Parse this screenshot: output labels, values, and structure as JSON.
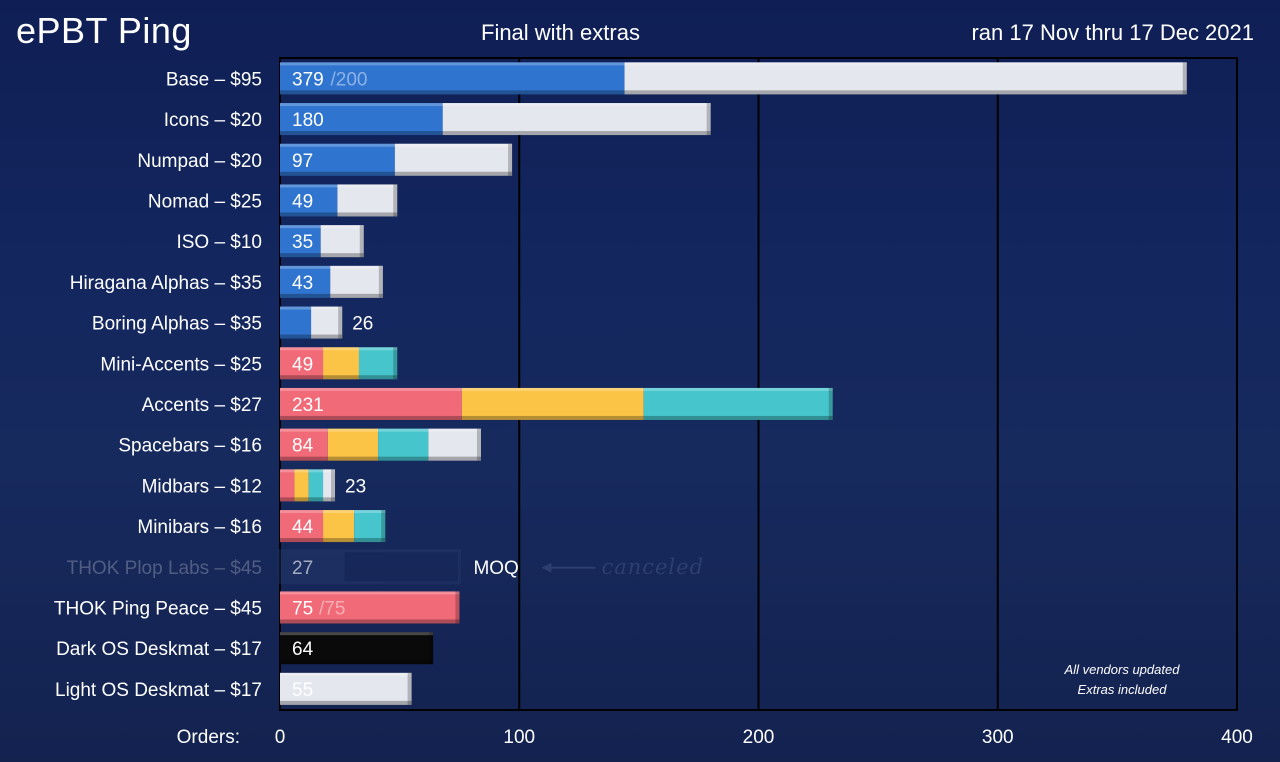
{
  "header": {
    "title": "ePBT Ping",
    "subtitle": "Final with extras",
    "date_range": "ran 17 Nov thru 17 Dec 2021"
  },
  "footer": {
    "axis_caption": "Orders:",
    "note_line1": "All vendors updated",
    "note_line2": "Extras included",
    "moq_label": "MOQ",
    "canceled_label": "canceled"
  },
  "colors": {
    "blue": "#2f74cf",
    "white": "#e4e7ee",
    "red": "#f06a78",
    "yellow": "#fbc446",
    "teal": "#46c6cc",
    "black": "#0a0a0a",
    "grid": "#000000",
    "faded": "#2c3f70"
  },
  "chart_data": {
    "type": "bar",
    "orientation": "horizontal",
    "stacked": true,
    "xlim": [
      0,
      400
    ],
    "xticks": [
      "0",
      "100",
      "200",
      "300",
      "400"
    ],
    "rows": [
      {
        "label": "Base – $95",
        "total": 379,
        "text": "379",
        "suffix": "/200",
        "text_pos": "inside",
        "segments": [
          {
            "color": "blue",
            "value": 144
          },
          {
            "color": "white",
            "value": 235
          }
        ]
      },
      {
        "label": "Icons – $20",
        "total": 180,
        "text": "180",
        "text_pos": "inside",
        "segments": [
          {
            "color": "blue",
            "value": 68
          },
          {
            "color": "white",
            "value": 112
          }
        ]
      },
      {
        "label": "Numpad – $20",
        "total": 97,
        "text": "97",
        "text_pos": "inside",
        "segments": [
          {
            "color": "blue",
            "value": 48
          },
          {
            "color": "white",
            "value": 49
          }
        ]
      },
      {
        "label": "Nomad – $25",
        "total": 49,
        "text": "49",
        "text_pos": "inside",
        "segments": [
          {
            "color": "blue",
            "value": 24
          },
          {
            "color": "white",
            "value": 25
          }
        ]
      },
      {
        "label": "ISO – $10",
        "total": 35,
        "text": "35",
        "text_pos": "inside",
        "segments": [
          {
            "color": "blue",
            "value": 17
          },
          {
            "color": "white",
            "value": 18
          }
        ]
      },
      {
        "label": "Hiragana Alphas – $35",
        "total": 43,
        "text": "43",
        "text_pos": "inside",
        "segments": [
          {
            "color": "blue",
            "value": 21
          },
          {
            "color": "white",
            "value": 22
          }
        ]
      },
      {
        "label": "Boring Alphas – $35",
        "total": 26,
        "text": "26",
        "text_pos": "outside",
        "segments": [
          {
            "color": "blue",
            "value": 13
          },
          {
            "color": "white",
            "value": 13
          }
        ]
      },
      {
        "label": "Mini-Accents – $25",
        "total": 49,
        "text": "49",
        "text_pos": "inside",
        "segments": [
          {
            "color": "red",
            "value": 18
          },
          {
            "color": "yellow",
            "value": 15
          },
          {
            "color": "teal",
            "value": 16
          }
        ]
      },
      {
        "label": "Accents – $27",
        "total": 231,
        "text": "231",
        "text_pos": "inside",
        "segments": [
          {
            "color": "red",
            "value": 76
          },
          {
            "color": "yellow",
            "value": 76
          },
          {
            "color": "teal",
            "value": 79
          }
        ]
      },
      {
        "label": "Spacebars – $16",
        "total": 84,
        "text": "84",
        "text_pos": "inside",
        "segments": [
          {
            "color": "red",
            "value": 20
          },
          {
            "color": "yellow",
            "value": 21
          },
          {
            "color": "teal",
            "value": 21
          },
          {
            "color": "white",
            "value": 22
          }
        ]
      },
      {
        "label": "Midbars – $12",
        "total": 23,
        "text": "23",
        "text_pos": "outside",
        "segments": [
          {
            "color": "red",
            "value": 6
          },
          {
            "color": "yellow",
            "value": 6
          },
          {
            "color": "teal",
            "value": 6
          },
          {
            "color": "white",
            "value": 5
          }
        ]
      },
      {
        "label": "Minibars – $16",
        "total": 44,
        "text": "44",
        "text_pos": "inside",
        "segments": [
          {
            "color": "red",
            "value": 18
          },
          {
            "color": "yellow",
            "value": 13
          },
          {
            "color": "teal",
            "value": 13
          }
        ]
      },
      {
        "label": "THOK Plop Labs – $45",
        "total": 27,
        "text": "27",
        "text_pos": "inside",
        "canceled": true,
        "moq": 75,
        "segments": [
          {
            "color": "faded",
            "value": 27
          }
        ]
      },
      {
        "label": "THOK Ping Peace – $45",
        "total": 75,
        "text": "75",
        "suffix": "/75",
        "text_pos": "inside",
        "segments": [
          {
            "color": "red",
            "value": 75
          }
        ]
      },
      {
        "label": "Dark OS Deskmat – $17",
        "total": 64,
        "text": "64",
        "text_pos": "inside",
        "text_color": "teal",
        "segments": [
          {
            "color": "black",
            "value": 64
          }
        ]
      },
      {
        "label": "Light OS Deskmat – $17",
        "total": 55,
        "text": "55",
        "text_pos": "inside",
        "text_color": "red",
        "segments": [
          {
            "color": "white",
            "value": 55
          }
        ]
      }
    ]
  }
}
